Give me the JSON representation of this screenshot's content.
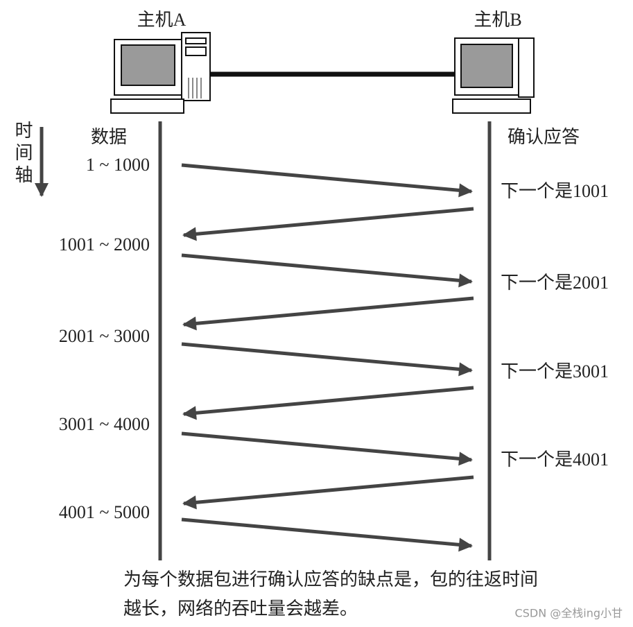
{
  "hosts": [
    "主机A",
    "主机B"
  ],
  "time_axis": "时间轴",
  "columns": {
    "data": "数据",
    "ack": "确认应答"
  },
  "data_segments": [
    "1 ~ 1000",
    "1001 ~ 2000",
    "2001 ~ 3000",
    "3001 ~ 4000",
    "4001 ~ 5000"
  ],
  "acks": [
    "下一个是1001",
    "下一个是2001",
    "下一个是3001",
    "下一个是4001"
  ],
  "caption": [
    "为每个数据包进行确认应答的缺点是，包的往返时间",
    "越长，网络的吞吐量会越差。"
  ],
  "watermark": "CSDN @全栈ing小甘"
}
